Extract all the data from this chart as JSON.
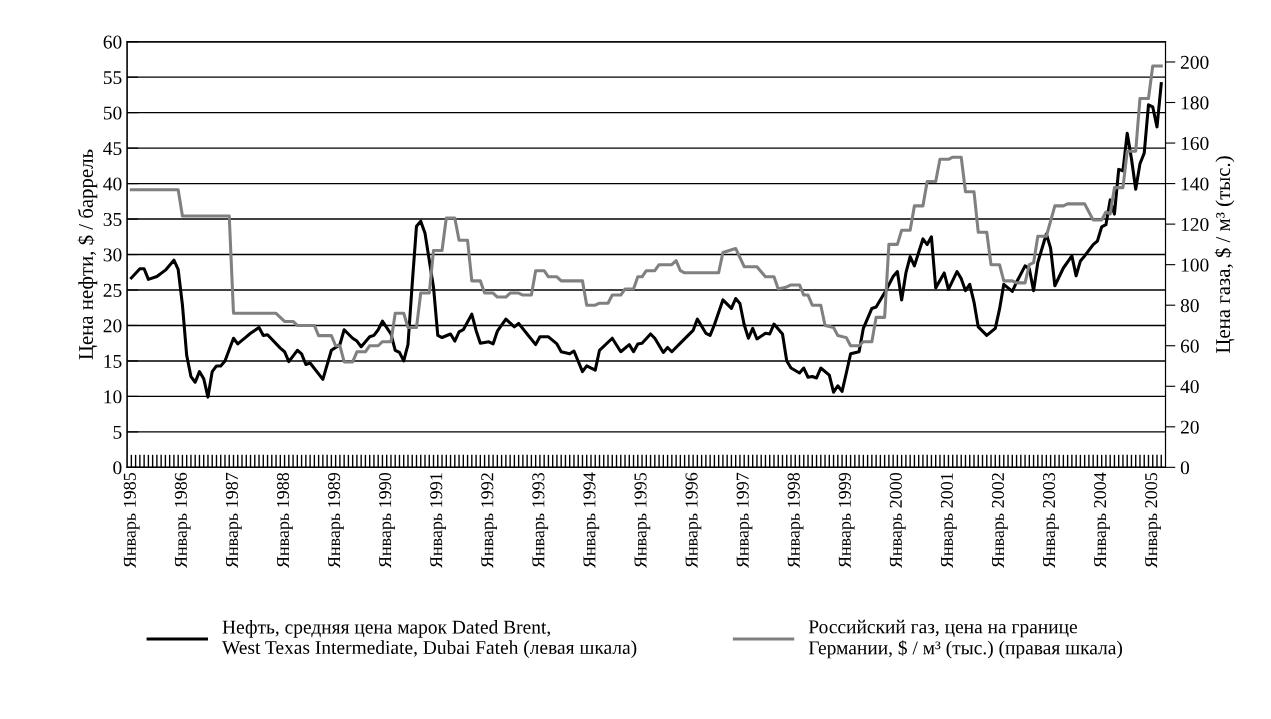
{
  "chart_data": {
    "type": "line",
    "ylabel": "Цена нефти, $ / баррель",
    "y2label": "Цена газа, $ / м³ (тыс.)",
    "series": [
      {
        "name": "Нефть, средняя цена марок Dated Brent,\nWest Texas Intermediate, Dubai Fateh (левая шкала)",
        "color": "#000000",
        "x": [
          "1985-01",
          "1985-03",
          "1985-04",
          "1985-05",
          "1985-07",
          "1985-09",
          "1985-11",
          "1985-12",
          "1986-01",
          "1986-02",
          "1986-03",
          "1986-04",
          "1986-05",
          "1986-06",
          "1986-07",
          "1986-08",
          "1986-09",
          "1986-10",
          "1986-11",
          "1987-01",
          "1987-02",
          "1987-04",
          "1987-05",
          "1987-07",
          "1987-08",
          "1987-09",
          "1987-12",
          "1988-01",
          "1988-02",
          "1988-04",
          "1988-05",
          "1988-06",
          "1988-07",
          "1988-10",
          "1988-12",
          "1989-02",
          "1989-03",
          "1989-05",
          "1989-06",
          "1989-07",
          "1989-09",
          "1989-10",
          "1989-11",
          "1989-12",
          "1990-02",
          "1990-03",
          "1990-04",
          "1990-05",
          "1990-06",
          "1990-07",
          "1990-08",
          "1990-09",
          "1990-10",
          "1990-12",
          "1991-01",
          "1991-02",
          "1991-04",
          "1991-05",
          "1991-06",
          "1991-07",
          "1991-09",
          "1991-10",
          "1991-11",
          "1992-01",
          "1992-02",
          "1992-03",
          "1992-05",
          "1992-07",
          "1992-08",
          "1992-10",
          "1992-12",
          "1993-01",
          "1993-03",
          "1993-05",
          "1993-06",
          "1993-08",
          "1993-09",
          "1993-11",
          "1993-12",
          "1994-02",
          "1994-03",
          "1994-06",
          "1994-08",
          "1994-10",
          "1994-11",
          "1994-12",
          "1995-01",
          "1995-03",
          "1995-04",
          "1995-06",
          "1995-07",
          "1995-08",
          "1995-10",
          "1995-11",
          "1996-01",
          "1996-02",
          "1996-04",
          "1996-05",
          "1996-06",
          "1996-08",
          "1996-10",
          "1996-11",
          "1996-12",
          "1997-01",
          "1997-02",
          "1997-03",
          "1997-04",
          "1997-06",
          "1997-07",
          "1997-08",
          "1997-10",
          "1997-11",
          "1997-12",
          "1998-02",
          "1998-03",
          "1998-04",
          "1998-05",
          "1998-06",
          "1998-07",
          "1998-09",
          "1998-10",
          "1998-11",
          "1998-12",
          "1999-01",
          "1999-02",
          "1999-04",
          "1999-05",
          "1999-07",
          "1999-08",
          "1999-10",
          "1999-12",
          "2000-01",
          "2000-02",
          "2000-03",
          "2000-04",
          "2000-05",
          "2000-07",
          "2000-08",
          "2000-09",
          "2000-10",
          "2000-12",
          "2001-01",
          "2001-03",
          "2001-04",
          "2001-05",
          "2001-06",
          "2001-07",
          "2001-08",
          "2001-10",
          "2001-12",
          "2002-01",
          "2002-02",
          "2002-04",
          "2002-05",
          "2002-07",
          "2002-08",
          "2002-09",
          "2002-10",
          "2002-12",
          "2003-01",
          "2003-02",
          "2003-04",
          "2003-06",
          "2003-07",
          "2003-08",
          "2003-09",
          "2003-11",
          "2003-12",
          "2004-01",
          "2004-02",
          "2004-03",
          "2004-04",
          "2004-05",
          "2004-06",
          "2004-07",
          "2004-08",
          "2004-09",
          "2004-10",
          "2004-11",
          "2004-12",
          "2005-01",
          "2005-02",
          "2005-03"
        ],
        "values": [
          26.7,
          28.0,
          28.0,
          26.5,
          26.9,
          27.8,
          29.2,
          27.9,
          22.9,
          15.8,
          12.8,
          12.0,
          13.5,
          12.5,
          9.9,
          13.5,
          14.3,
          14.3,
          15.0,
          18.2,
          17.4,
          18.4,
          18.9,
          19.7,
          18.6,
          18.7,
          16.8,
          16.3,
          14.9,
          16.5,
          16.0,
          14.5,
          14.7,
          12.4,
          16.5,
          17.3,
          19.4,
          18.2,
          17.8,
          17.0,
          18.4,
          18.6,
          19.4,
          20.6,
          18.8,
          16.5,
          16.2,
          15.0,
          17.3,
          25.9,
          34.0,
          34.7,
          33.0,
          25.4,
          18.6,
          18.3,
          18.8,
          17.8,
          19.1,
          19.4,
          21.6,
          19.3,
          17.5,
          17.7,
          17.4,
          19.2,
          20.9,
          19.8,
          20.3,
          18.8,
          17.3,
          18.4,
          18.4,
          17.4,
          16.3,
          16.0,
          16.4,
          13.5,
          14.3,
          13.7,
          16.5,
          18.2,
          16.3,
          17.3,
          16.3,
          17.4,
          17.5,
          18.8,
          18.2,
          16.2,
          16.9,
          16.3,
          17.5,
          18.1,
          19.3,
          20.9,
          18.9,
          18.6,
          20.1,
          23.6,
          22.4,
          23.8,
          23.1,
          20.1,
          18.2,
          19.6,
          18.1,
          18.9,
          18.8,
          20.2,
          18.8,
          15.0,
          14.0,
          13.3,
          14.0,
          12.7,
          12.8,
          12.6,
          14.0,
          13.0,
          10.6,
          11.5,
          10.7,
          13.3,
          16.0,
          16.3,
          19.6,
          22.4,
          22.6,
          24.6,
          26.9,
          27.6,
          23.6,
          27.4,
          29.7,
          28.4,
          32.2,
          31.4,
          32.5,
          25.3,
          27.4,
          25.1,
          27.6,
          26.6,
          24.9,
          25.8,
          23.3,
          19.8,
          18.6,
          19.6,
          22.3,
          25.8,
          24.8,
          26.1,
          28.4,
          28.0,
          24.9,
          28.9,
          32.9,
          30.9,
          25.6,
          28.1,
          29.8,
          27.0,
          29.1,
          29.8,
          31.4,
          31.9,
          33.9,
          34.2,
          37.7,
          35.7,
          42.0,
          41.8,
          47.1,
          43.5,
          39.2,
          42.8,
          44.3,
          51.1,
          50.8,
          48.0,
          54.1
        ]
      },
      {
        "name": "Российский газ, цена на границе\nГермании, $ / м³ (тыс.) (правая шкала)",
        "color": "#808080",
        "axis": "y2",
        "x": [
          "1985-01",
          "1985-12",
          "1986-01",
          "1986-12",
          "1987-01",
          "1987-11",
          "1988-01",
          "1988-03",
          "1988-04",
          "1988-08",
          "1988-09",
          "1988-12",
          "1989-01",
          "1989-02",
          "1989-03",
          "1989-05",
          "1989-06",
          "1989-08",
          "1989-09",
          "1989-11",
          "1989-12",
          "1990-02",
          "1990-03",
          "1990-05",
          "1990-06",
          "1990-08",
          "1990-09",
          "1990-11",
          "1990-12",
          "1991-02",
          "1991-03",
          "1991-05",
          "1991-06",
          "1991-08",
          "1991-09",
          "1991-11",
          "1991-12",
          "1992-02",
          "1992-03",
          "1992-05",
          "1992-06",
          "1992-08",
          "1992-09",
          "1992-11",
          "1992-12",
          "1993-02",
          "1993-03",
          "1993-05",
          "1993-06",
          "1993-11",
          "1993-12",
          "1994-02",
          "1994-03",
          "1994-05",
          "1994-06",
          "1994-08",
          "1994-09",
          "1994-11",
          "1994-12",
          "1995-01",
          "1995-02",
          "1995-04",
          "1995-05",
          "1995-08",
          "1995-09",
          "1995-10",
          "1995-11",
          "1996-07",
          "1996-08",
          "1996-11",
          "1997-01",
          "1997-04",
          "1997-06",
          "1997-08",
          "1997-09",
          "1997-11",
          "1997-12",
          "1998-02",
          "1998-03",
          "1998-04",
          "1998-05",
          "1998-07",
          "1998-08",
          "1998-10",
          "1998-11",
          "1999-01",
          "1999-02",
          "1999-04",
          "1999-05",
          "1999-07",
          "1999-08",
          "1999-10",
          "1999-11",
          "2000-01",
          "2000-02",
          "2000-04",
          "2000-05",
          "2000-07",
          "2000-08",
          "2000-10",
          "2000-11",
          "2001-01",
          "2001-02",
          "2001-04",
          "2001-05",
          "2001-07",
          "2001-08",
          "2001-10",
          "2001-11",
          "2002-01",
          "2002-02",
          "2002-04",
          "2002-05",
          "2002-07",
          "2002-08",
          "2002-09",
          "2002-10",
          "2002-12",
          "2003-02",
          "2003-04",
          "2003-05",
          "2003-09",
          "2003-11",
          "2004-01",
          "2004-02",
          "2004-03",
          "2004-04",
          "2004-06",
          "2004-07",
          "2004-09",
          "2004-10",
          "2004-12",
          "2005-01",
          "2005-03"
        ],
        "values": [
          137,
          137,
          124,
          124,
          76,
          76,
          72,
          72,
          70,
          70,
          65,
          65,
          60,
          60,
          52,
          52,
          57,
          57,
          60,
          60,
          62,
          62,
          76,
          76,
          69,
          69,
          86,
          86,
          107,
          107,
          123,
          123,
          112,
          112,
          92,
          92,
          86,
          86,
          84,
          84,
          86,
          86,
          85,
          85,
          97,
          97,
          94,
          94,
          92,
          92,
          80,
          80,
          81,
          81,
          85,
          85,
          88,
          88,
          94,
          94,
          97,
          97,
          100,
          100,
          102,
          97,
          96,
          96,
          106,
          108,
          99,
          99,
          94,
          94,
          88,
          89,
          90,
          90,
          85,
          85,
          80,
          80,
          70,
          69,
          65,
          64,
          60,
          60,
          62,
          62,
          74,
          74,
          110,
          110,
          117,
          117,
          129,
          129,
          141,
          141,
          152,
          152,
          153,
          153,
          136,
          136,
          116,
          116,
          100,
          100,
          92,
          92,
          91,
          91,
          100,
          101,
          114,
          114,
          129,
          129,
          130,
          130,
          122,
          122,
          126,
          125,
          138,
          138,
          156,
          156,
          182,
          182,
          198,
          198
        ]
      }
    ],
    "xlim": [
      "1984-12",
      "2005-04"
    ],
    "xticks": [
      {
        "value": "1985-01",
        "label": "Январь 1985"
      },
      {
        "value": "1985-02",
        "label": null
      },
      {
        "value": "1985-03",
        "label": null
      },
      {
        "value": "1985-04",
        "label": null
      },
      {
        "value": "1985-05",
        "label": null
      },
      {
        "value": "1985-06",
        "label": null
      },
      {
        "value": "1985-07",
        "label": null
      },
      {
        "value": "1985-08",
        "label": null
      },
      {
        "value": "1985-09",
        "label": null
      },
      {
        "value": "1985-10",
        "label": null
      },
      {
        "value": "1985-11",
        "label": null
      },
      {
        "value": "1985-12",
        "label": null
      },
      {
        "value": "1986-01",
        "label": "Январь 1986"
      },
      {
        "value": "1986-02",
        "label": null
      },
      {
        "value": "1986-03",
        "label": null
      },
      {
        "value": "1986-04",
        "label": null
      },
      {
        "value": "1986-05",
        "label": null
      },
      {
        "value": "1986-06",
        "label": null
      },
      {
        "value": "1986-07",
        "label": null
      },
      {
        "value": "1986-08",
        "label": null
      },
      {
        "value": "1986-09",
        "label": null
      },
      {
        "value": "1986-10",
        "label": null
      },
      {
        "value": "1986-11",
        "label": null
      },
      {
        "value": "1986-12",
        "label": null
      },
      {
        "value": "1987-01",
        "label": "Январь 1987"
      },
      {
        "value": "1987-02",
        "label": null
      },
      {
        "value": "1987-03",
        "label": null
      },
      {
        "value": "1987-04",
        "label": null
      },
      {
        "value": "1987-05",
        "label": null
      },
      {
        "value": "1987-06",
        "label": null
      },
      {
        "value": "1987-07",
        "label": null
      },
      {
        "value": "1987-08",
        "label": null
      },
      {
        "value": "1987-09",
        "label": null
      },
      {
        "value": "1987-10",
        "label": null
      },
      {
        "value": "1987-11",
        "label": null
      },
      {
        "value": "1987-12",
        "label": null
      },
      {
        "value": "1988-01",
        "label": "Январь 1988"
      },
      {
        "value": "1988-02",
        "label": null
      },
      {
        "value": "1988-03",
        "label": null
      },
      {
        "value": "1988-04",
        "label": null
      },
      {
        "value": "1988-05",
        "label": null
      },
      {
        "value": "1988-06",
        "label": null
      },
      {
        "value": "1988-07",
        "label": null
      },
      {
        "value": "1988-08",
        "label": null
      },
      {
        "value": "1988-09",
        "label": null
      },
      {
        "value": "1988-10",
        "label": null
      },
      {
        "value": "1988-11",
        "label": null
      },
      {
        "value": "1988-12",
        "label": null
      },
      {
        "value": "1989-01",
        "label": "Январь 1989"
      },
      {
        "value": "1989-02",
        "label": null
      },
      {
        "value": "1989-03",
        "label": null
      },
      {
        "value": "1989-04",
        "label": null
      },
      {
        "value": "1989-05",
        "label": null
      },
      {
        "value": "1989-06",
        "label": null
      },
      {
        "value": "1989-07",
        "label": null
      },
      {
        "value": "1989-08",
        "label": null
      },
      {
        "value": "1989-09",
        "label": null
      },
      {
        "value": "1989-10",
        "label": null
      },
      {
        "value": "1989-11",
        "label": null
      },
      {
        "value": "1989-12",
        "label": null
      },
      {
        "value": "1990-01",
        "label": "Январь 1990"
      },
      {
        "value": "1990-02",
        "label": null
      },
      {
        "value": "1990-03",
        "label": null
      },
      {
        "value": "1990-04",
        "label": null
      },
      {
        "value": "1990-05",
        "label": null
      },
      {
        "value": "1990-06",
        "label": null
      },
      {
        "value": "1990-07",
        "label": null
      },
      {
        "value": "1990-08",
        "label": null
      },
      {
        "value": "1990-09",
        "label": null
      },
      {
        "value": "1990-10",
        "label": null
      },
      {
        "value": "1990-11",
        "label": null
      },
      {
        "value": "1990-12",
        "label": null
      },
      {
        "value": "1991-01",
        "label": "Январь 1991"
      },
      {
        "value": "1991-02",
        "label": null
      },
      {
        "value": "1991-03",
        "label": null
      },
      {
        "value": "1991-04",
        "label": null
      },
      {
        "value": "1991-05",
        "label": null
      },
      {
        "value": "1991-06",
        "label": null
      },
      {
        "value": "1991-07",
        "label": null
      },
      {
        "value": "1991-08",
        "label": null
      },
      {
        "value": "1991-09",
        "label": null
      },
      {
        "value": "1991-10",
        "label": null
      },
      {
        "value": "1991-11",
        "label": null
      },
      {
        "value": "1991-12",
        "label": null
      },
      {
        "value": "1992-01",
        "label": "Январь 1992"
      },
      {
        "value": "1992-02",
        "label": null
      },
      {
        "value": "1992-03",
        "label": null
      },
      {
        "value": "1992-04",
        "label": null
      },
      {
        "value": "1992-05",
        "label": null
      },
      {
        "value": "1992-06",
        "label": null
      },
      {
        "value": "1992-07",
        "label": null
      },
      {
        "value": "1992-08",
        "label": null
      },
      {
        "value": "1992-09",
        "label": null
      },
      {
        "value": "1992-10",
        "label": null
      },
      {
        "value": "1992-11",
        "label": null
      },
      {
        "value": "1992-12",
        "label": null
      },
      {
        "value": "1993-01",
        "label": "Январь 1993"
      },
      {
        "value": "1993-02",
        "label": null
      },
      {
        "value": "1993-03",
        "label": null
      },
      {
        "value": "1993-04",
        "label": null
      },
      {
        "value": "1993-05",
        "label": null
      },
      {
        "value": "1993-06",
        "label": null
      },
      {
        "value": "1993-07",
        "label": null
      },
      {
        "value": "1993-08",
        "label": null
      },
      {
        "value": "1993-09",
        "label": null
      },
      {
        "value": "1993-10",
        "label": null
      },
      {
        "value": "1993-11",
        "label": null
      },
      {
        "value": "1993-12",
        "label": null
      },
      {
        "value": "1994-01",
        "label": "Январь 1994"
      },
      {
        "value": "1994-02",
        "label": null
      },
      {
        "value": "1994-03",
        "label": null
      },
      {
        "value": "1994-04",
        "label": null
      },
      {
        "value": "1994-05",
        "label": null
      },
      {
        "value": "1994-06",
        "label": null
      },
      {
        "value": "1994-07",
        "label": null
      },
      {
        "value": "1994-08",
        "label": null
      },
      {
        "value": "1994-09",
        "label": null
      },
      {
        "value": "1994-10",
        "label": null
      },
      {
        "value": "1994-11",
        "label": null
      },
      {
        "value": "1994-12",
        "label": null
      },
      {
        "value": "1995-01",
        "label": "Январь 1995"
      },
      {
        "value": "1995-02",
        "label": null
      },
      {
        "value": "1995-03",
        "label": null
      },
      {
        "value": "1995-04",
        "label": null
      },
      {
        "value": "1995-05",
        "label": null
      },
      {
        "value": "1995-06",
        "label": null
      },
      {
        "value": "1995-07",
        "label": null
      },
      {
        "value": "1995-08",
        "label": null
      },
      {
        "value": "1995-09",
        "label": null
      },
      {
        "value": "1995-10",
        "label": null
      },
      {
        "value": "1995-11",
        "label": null
      },
      {
        "value": "1995-12",
        "label": null
      },
      {
        "value": "1996-01",
        "label": "Январь 1996"
      },
      {
        "value": "1996-02",
        "label": null
      },
      {
        "value": "1996-03",
        "label": null
      },
      {
        "value": "1996-04",
        "label": null
      },
      {
        "value": "1996-05",
        "label": null
      },
      {
        "value": "1996-06",
        "label": null
      },
      {
        "value": "1996-07",
        "label": null
      },
      {
        "value": "1996-08",
        "label": null
      },
      {
        "value": "1996-09",
        "label": null
      },
      {
        "value": "1996-10",
        "label": null
      },
      {
        "value": "1996-11",
        "label": null
      },
      {
        "value": "1996-12",
        "label": null
      },
      {
        "value": "1997-01",
        "label": "Январь 1997"
      },
      {
        "value": "1997-02",
        "label": null
      },
      {
        "value": "1997-03",
        "label": null
      },
      {
        "value": "1997-04",
        "label": null
      },
      {
        "value": "1997-05",
        "label": null
      },
      {
        "value": "1997-06",
        "label": null
      },
      {
        "value": "1997-07",
        "label": null
      },
      {
        "value": "1997-08",
        "label": null
      },
      {
        "value": "1997-09",
        "label": null
      },
      {
        "value": "1997-10",
        "label": null
      },
      {
        "value": "1997-11",
        "label": null
      },
      {
        "value": "1997-12",
        "label": null
      },
      {
        "value": "1998-01",
        "label": "Январь 1998"
      },
      {
        "value": "1998-02",
        "label": null
      },
      {
        "value": "1998-03",
        "label": null
      },
      {
        "value": "1998-04",
        "label": null
      },
      {
        "value": "1998-05",
        "label": null
      },
      {
        "value": "1998-06",
        "label": null
      },
      {
        "value": "1998-07",
        "label": null
      },
      {
        "value": "1998-08",
        "label": null
      },
      {
        "value": "1998-09",
        "label": null
      },
      {
        "value": "1998-10",
        "label": null
      },
      {
        "value": "1998-11",
        "label": null
      },
      {
        "value": "1998-12",
        "label": null
      },
      {
        "value": "1999-01",
        "label": "Январь 1999"
      },
      {
        "value": "1999-02",
        "label": null
      },
      {
        "value": "1999-03",
        "label": null
      },
      {
        "value": "1999-04",
        "label": null
      },
      {
        "value": "1999-05",
        "label": null
      },
      {
        "value": "1999-06",
        "label": null
      },
      {
        "value": "1999-07",
        "label": null
      },
      {
        "value": "1999-08",
        "label": null
      },
      {
        "value": "1999-09",
        "label": null
      },
      {
        "value": "1999-10",
        "label": null
      },
      {
        "value": "1999-11",
        "label": null
      },
      {
        "value": "1999-12",
        "label": null
      },
      {
        "value": "2000-01",
        "label": "Январь 2000"
      },
      {
        "value": "2000-02",
        "label": null
      },
      {
        "value": "2000-03",
        "label": null
      },
      {
        "value": "2000-04",
        "label": null
      },
      {
        "value": "2000-05",
        "label": null
      },
      {
        "value": "2000-06",
        "label": null
      },
      {
        "value": "2000-07",
        "label": null
      },
      {
        "value": "2000-08",
        "label": null
      },
      {
        "value": "2000-09",
        "label": null
      },
      {
        "value": "2000-10",
        "label": null
      },
      {
        "value": "2000-11",
        "label": null
      },
      {
        "value": "2000-12",
        "label": null
      },
      {
        "value": "2001-01",
        "label": "Январь 2001"
      },
      {
        "value": "2001-02",
        "label": null
      },
      {
        "value": "2001-03",
        "label": null
      },
      {
        "value": "2001-04",
        "label": null
      },
      {
        "value": "2001-05",
        "label": null
      },
      {
        "value": "2001-06",
        "label": null
      },
      {
        "value": "2001-07",
        "label": null
      },
      {
        "value": "2001-08",
        "label": null
      },
      {
        "value": "2001-09",
        "label": null
      },
      {
        "value": "2001-10",
        "label": null
      },
      {
        "value": "2001-11",
        "label": null
      },
      {
        "value": "2001-12",
        "label": null
      },
      {
        "value": "2002-01",
        "label": "Январь 2002"
      },
      {
        "value": "2002-02",
        "label": null
      },
      {
        "value": "2002-03",
        "label": null
      },
      {
        "value": "2002-04",
        "label": null
      },
      {
        "value": "2002-05",
        "label": null
      },
      {
        "value": "2002-06",
        "label": null
      },
      {
        "value": "2002-07",
        "label": null
      },
      {
        "value": "2002-08",
        "label": null
      },
      {
        "value": "2002-09",
        "label": null
      },
      {
        "value": "2002-10",
        "label": null
      },
      {
        "value": "2002-11",
        "label": null
      },
      {
        "value": "2002-12",
        "label": null
      },
      {
        "value": "2003-01",
        "label": "Январь 2003"
      },
      {
        "value": "2003-02",
        "label": null
      },
      {
        "value": "2003-03",
        "label": null
      },
      {
        "value": "2003-04",
        "label": null
      },
      {
        "value": "2003-05",
        "label": null
      },
      {
        "value": "2003-06",
        "label": null
      },
      {
        "value": "2003-07",
        "label": null
      },
      {
        "value": "2003-08",
        "label": null
      },
      {
        "value": "2003-09",
        "label": null
      },
      {
        "value": "2003-10",
        "label": null
      },
      {
        "value": "2003-11",
        "label": null
      },
      {
        "value": "2003-12",
        "label": null
      },
      {
        "value": "2004-01",
        "label": "Январь 2004"
      },
      {
        "value": "2004-02",
        "label": null
      },
      {
        "value": "2004-03",
        "label": null
      },
      {
        "value": "2004-04",
        "label": null
      },
      {
        "value": "2004-05",
        "label": null
      },
      {
        "value": "2004-06",
        "label": null
      },
      {
        "value": "2004-07",
        "label": null
      },
      {
        "value": "2004-08",
        "label": null
      },
      {
        "value": "2004-09",
        "label": null
      },
      {
        "value": "2004-10",
        "label": null
      },
      {
        "value": "2004-11",
        "label": null
      },
      {
        "value": "2004-12",
        "label": null
      },
      {
        "value": "2005-01",
        "label": "Январь 2005"
      },
      {
        "value": "2005-02",
        "label": null
      },
      {
        "value": "2005-03",
        "label": null
      }
    ],
    "ylim": [
      0,
      60
    ],
    "yticks": [
      0,
      5,
      10,
      15,
      20,
      25,
      30,
      35,
      40,
      45,
      50,
      55,
      60
    ],
    "y2lim": [
      0,
      210
    ],
    "y2ticks": [
      0,
      20,
      40,
      60,
      80,
      100,
      120,
      140,
      160,
      180,
      200
    ],
    "grid": "y",
    "legend": "bottom",
    "line_style": "solid",
    "marker": "none"
  }
}
